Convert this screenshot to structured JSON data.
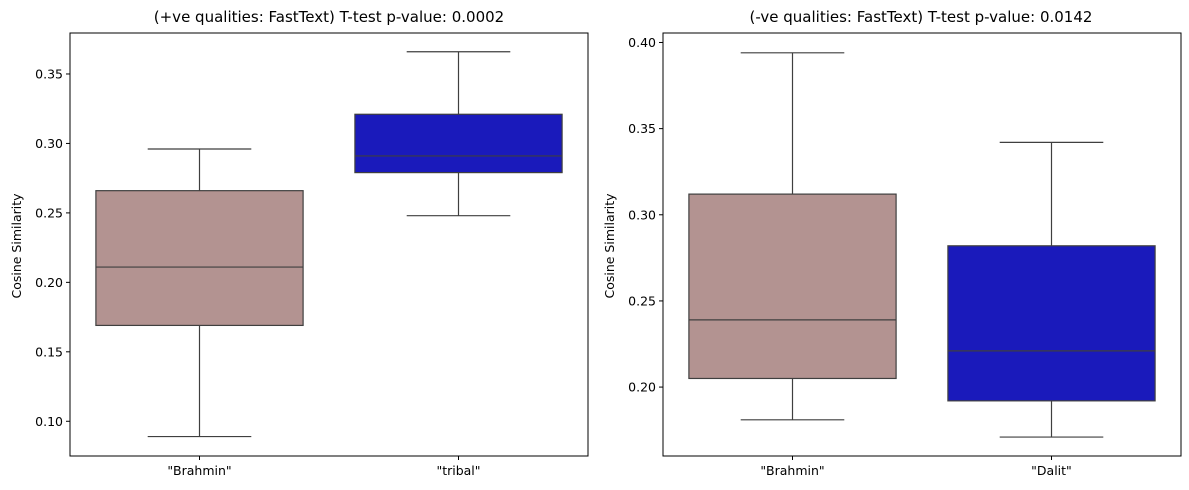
{
  "chart_data": [
    {
      "type": "box",
      "title": "(+ve qualities: FastText) T-test p-value: 0.0002",
      "ylabel": "Cosine Similarity",
      "xlabel": "",
      "categories": [
        "\"Brahmin\"",
        "\"tribal\""
      ],
      "ylim": [
        0.075,
        0.3795
      ],
      "yticks": [
        0.1,
        0.15,
        0.2,
        0.25,
        0.3,
        0.35
      ],
      "ytick_labels": [
        "0.10",
        "0.15",
        "0.20",
        "0.25",
        "0.30",
        "0.35"
      ],
      "boxes": [
        {
          "category": "\"Brahmin\"",
          "whisker_low": 0.089,
          "q1": 0.169,
          "median": 0.211,
          "q3": 0.266,
          "whisker_high": 0.296,
          "color": "#b39391"
        },
        {
          "category": "\"tribal\"",
          "whisker_low": 0.248,
          "q1": 0.279,
          "median": 0.291,
          "q3": 0.321,
          "whisker_high": 0.366,
          "color": "#1a1abb"
        }
      ],
      "grid": false
    },
    {
      "type": "box",
      "title": "(-ve qualities: FastText) T-test p-value: 0.0142",
      "ylabel": "Cosine Similarity",
      "xlabel": "",
      "categories": [
        "\"Brahmin\"",
        "\"Dalit\""
      ],
      "ylim": [
        0.16,
        0.4055
      ],
      "yticks": [
        0.2,
        0.25,
        0.3,
        0.35,
        0.4
      ],
      "ytick_labels": [
        "0.20",
        "0.25",
        "0.30",
        "0.35",
        "0.40"
      ],
      "boxes": [
        {
          "category": "\"Brahmin\"",
          "whisker_low": 0.181,
          "q1": 0.205,
          "median": 0.239,
          "q3": 0.312,
          "whisker_high": 0.394,
          "color": "#b39391"
        },
        {
          "category": "\"Dalit\"",
          "whisker_low": 0.171,
          "q1": 0.192,
          "median": 0.221,
          "q3": 0.282,
          "whisker_high": 0.342,
          "color": "#1a1abb"
        }
      ],
      "grid": false
    }
  ],
  "colors": {
    "box_line": "#3f3f3f",
    "axis": "#000000"
  }
}
